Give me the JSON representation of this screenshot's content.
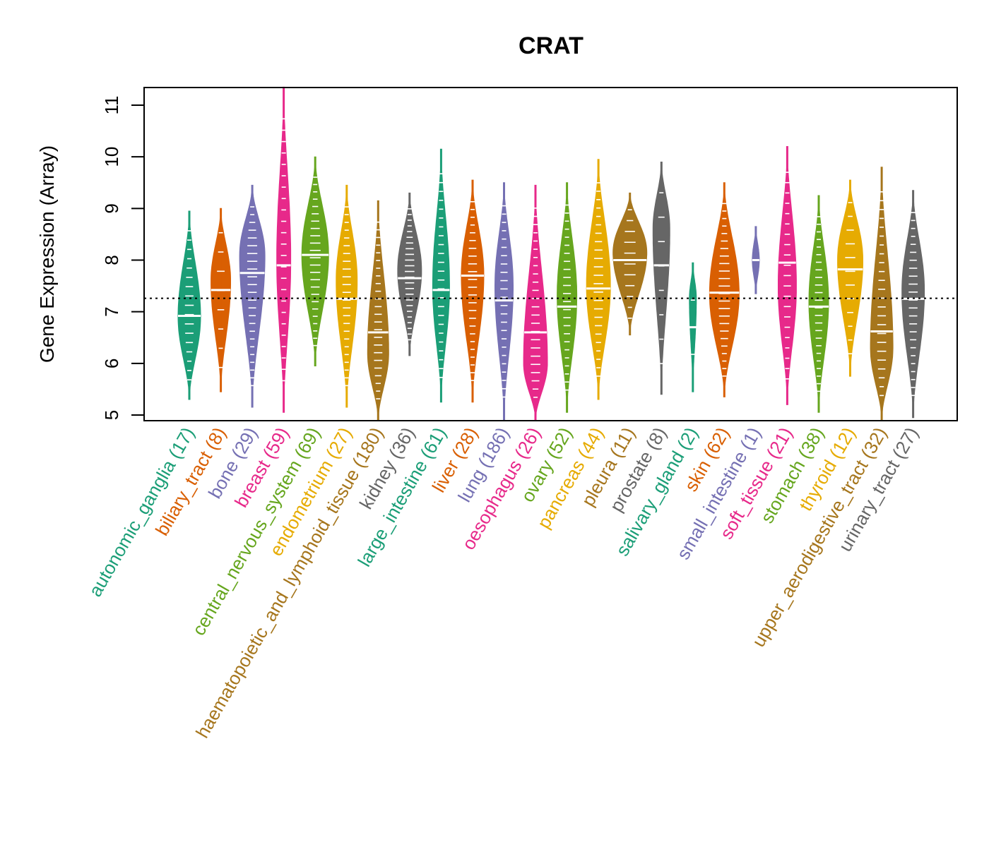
{
  "chart_data": {
    "type": "violin",
    "title": "CRAT",
    "xlabel": "",
    "ylabel": "Gene Expression (Array)",
    "ylim": [
      4.9,
      11.35
    ],
    "yticks": [
      5,
      6,
      7,
      8,
      9,
      10,
      11
    ],
    "reference_line": {
      "value": 7.26,
      "style": "dotted"
    },
    "grid": false,
    "legend": "none",
    "groups": [
      {
        "name": "autonomic_ganglia",
        "n": 17,
        "label": "autonomic_ganglia (17)",
        "color": "#1B9E77",
        "min": 5.3,
        "max": 8.95,
        "median": 6.92,
        "peak": 6.9,
        "width": 0.8
      },
      {
        "name": "biliary_tract",
        "n": 8,
        "label": "biliary_tract (8)",
        "color": "#D95F02",
        "min": 5.45,
        "max": 9.0,
        "median": 7.42,
        "peak": 7.6,
        "width": 0.7
      },
      {
        "name": "bone",
        "n": 29,
        "label": "bone (29)",
        "color": "#7570B3",
        "min": 5.15,
        "max": 9.45,
        "median": 7.75,
        "peak": 8.1,
        "width": 0.9
      },
      {
        "name": "breast",
        "n": 59,
        "label": "breast (59)",
        "color": "#E7298A",
        "min": 5.05,
        "max": 11.35,
        "median": 7.9,
        "peak": 8.0,
        "width": 0.5
      },
      {
        "name": "central_nervous_system",
        "n": 69,
        "label": "central_nervous_system (69)",
        "color": "#66A61E",
        "min": 5.95,
        "max": 10.0,
        "median": 8.1,
        "peak": 8.1,
        "width": 0.95
      },
      {
        "name": "endometrium",
        "n": 27,
        "label": "endometrium (27)",
        "color": "#E6AB02",
        "min": 5.15,
        "max": 9.45,
        "median": 7.25,
        "peak": 7.6,
        "width": 0.75
      },
      {
        "name": "haematopoietic_and_lymphoid_tissue",
        "n": 180,
        "label": "haematopoietic_and_lymphoid_tissue (180)",
        "color": "#A6761D",
        "min": 4.9,
        "max": 9.15,
        "median": 6.6,
        "peak": 6.2,
        "width": 0.75
      },
      {
        "name": "kidney",
        "n": 36,
        "label": "kidney (36)",
        "color": "#666666",
        "min": 6.15,
        "max": 9.3,
        "median": 7.65,
        "peak": 7.8,
        "width": 0.85
      },
      {
        "name": "large_intestine",
        "n": 61,
        "label": "large_intestine (61)",
        "color": "#1B9E77",
        "min": 5.25,
        "max": 10.15,
        "median": 7.42,
        "peak": 7.5,
        "width": 0.6
      },
      {
        "name": "liver",
        "n": 28,
        "label": "liver (28)",
        "color": "#D95F02",
        "min": 5.25,
        "max": 9.55,
        "median": 7.7,
        "peak": 7.7,
        "width": 0.8
      },
      {
        "name": "lung",
        "n": 186,
        "label": "lung (186)",
        "color": "#7570B3",
        "min": 4.9,
        "max": 9.5,
        "median": 7.22,
        "peak": 7.5,
        "width": 0.65
      },
      {
        "name": "oesophagus",
        "n": 26,
        "label": "oesophagus (26)",
        "color": "#E7298A",
        "min": 4.9,
        "max": 9.45,
        "median": 6.6,
        "peak": 6.0,
        "width": 0.85
      },
      {
        "name": "ovary",
        "n": 52,
        "label": "ovary (52)",
        "color": "#66A61E",
        "min": 5.05,
        "max": 9.5,
        "median": 7.1,
        "peak": 7.3,
        "width": 0.7
      },
      {
        "name": "pancreas",
        "n": 44,
        "label": "pancreas (44)",
        "color": "#E6AB02",
        "min": 5.3,
        "max": 9.95,
        "median": 7.45,
        "peak": 7.5,
        "width": 0.85
      },
      {
        "name": "pleura",
        "n": 11,
        "label": "pleura (11)",
        "color": "#A6761D",
        "min": 6.55,
        "max": 9.3,
        "median": 8.0,
        "peak": 8.15,
        "width": 1.2
      },
      {
        "name": "prostate",
        "n": 8,
        "label": "prostate (8)",
        "color": "#666666",
        "min": 5.4,
        "max": 9.9,
        "median": 7.9,
        "peak": 8.6,
        "width": 0.6
      },
      {
        "name": "salivary_gland",
        "n": 2,
        "label": "salivary_gland (2)",
        "color": "#1B9E77",
        "min": 5.45,
        "max": 7.95,
        "median": 6.7,
        "peak": 7.25,
        "width": 0.25
      },
      {
        "name": "skin",
        "n": 62,
        "label": "skin (62)",
        "color": "#D95F02",
        "min": 5.35,
        "max": 9.5,
        "median": 7.37,
        "peak": 7.35,
        "width": 1.05
      },
      {
        "name": "small_intestine",
        "n": 1,
        "label": "small_intestine (1)",
        "color": "#7570B3",
        "min": 7.35,
        "max": 8.65,
        "median": 8.0,
        "peak": 8.0,
        "width": 0.25
      },
      {
        "name": "soft_tissue",
        "n": 21,
        "label": "soft_tissue (21)",
        "color": "#E7298A",
        "min": 5.2,
        "max": 10.2,
        "median": 7.95,
        "peak": 7.5,
        "width": 0.65
      },
      {
        "name": "stomach",
        "n": 38,
        "label": "stomach (38)",
        "color": "#66A61E",
        "min": 5.05,
        "max": 9.25,
        "median": 7.1,
        "peak": 7.2,
        "width": 0.7
      },
      {
        "name": "thyroid",
        "n": 12,
        "label": "thyroid (12)",
        "color": "#E6AB02",
        "min": 5.75,
        "max": 9.55,
        "median": 7.82,
        "peak": 8.0,
        "width": 0.9
      },
      {
        "name": "upper_aerodigestive_tract",
        "n": 32,
        "label": "upper_aerodigestive_tract (32)",
        "color": "#A6761D",
        "min": 4.9,
        "max": 9.8,
        "median": 6.62,
        "peak": 6.3,
        "width": 0.8
      },
      {
        "name": "urinary_tract",
        "n": 27,
        "label": "urinary_tract (27)",
        "color": "#666666",
        "min": 4.95,
        "max": 9.35,
        "median": 7.25,
        "peak": 7.4,
        "width": 0.8
      }
    ]
  }
}
